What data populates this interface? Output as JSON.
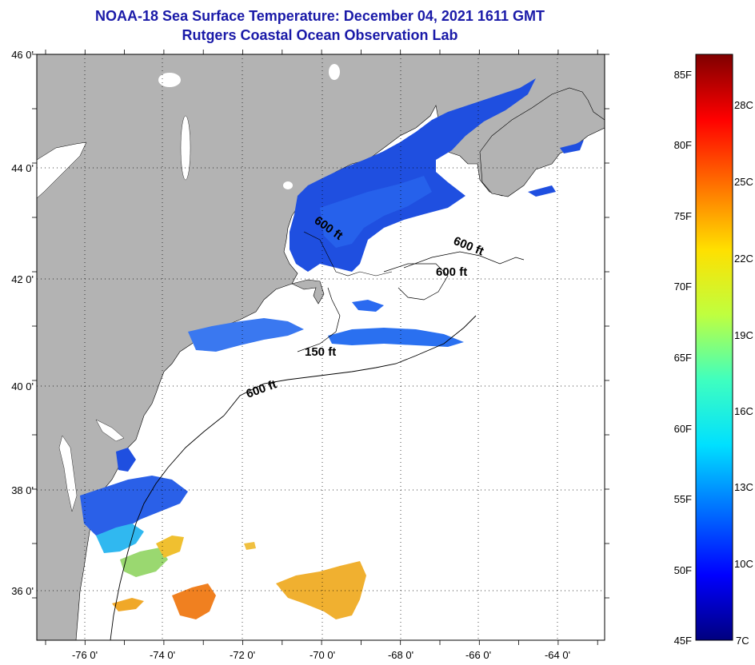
{
  "title": {
    "line1": "NOAA-18 Sea Surface Temperature:  December 04, 2021 1611 GMT",
    "line2": "Rutgers Coastal Ocean Observation Lab"
  },
  "map": {
    "lat_labels": [
      "46 0'",
      "44 0'",
      "42 0'",
      "40 0'",
      "38 0'",
      "36 0'"
    ],
    "lon_labels": [
      "-76 0'",
      "-74 0'",
      "-72 0'",
      "-70 0'",
      "-68 0'",
      "-66 0'",
      "-64 0'"
    ],
    "contour_labels": [
      "600 ft",
      "600 ft",
      "600 ft",
      "150 ft",
      "600 ft"
    ]
  },
  "colorbar": {
    "f_labels": [
      "85F",
      "80F",
      "75F",
      "70F",
      "65F",
      "60F",
      "55F",
      "50F",
      "45F"
    ],
    "c_labels": [
      "28C",
      "25C",
      "22C",
      "19C",
      "16C",
      "13C",
      "10C",
      "7C"
    ],
    "stops": [
      "#00007f",
      "#0000ff",
      "#0070ff",
      "#00e0ff",
      "#3fffbf",
      "#bfff3f",
      "#ffe000",
      "#ff7000",
      "#ff0000",
      "#7f0000"
    ]
  }
}
